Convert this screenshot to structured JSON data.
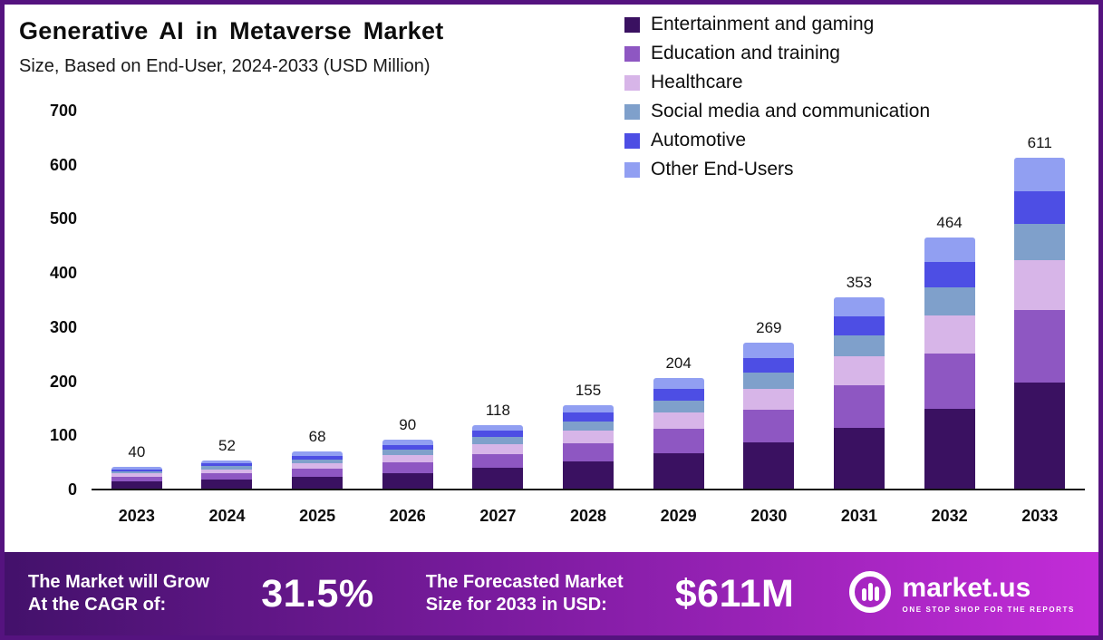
{
  "header": {
    "title": "Generative AI in Metaverse Market",
    "subtitle": "Size, Based on End-User, 2024-2033 (USD Million)"
  },
  "chart_data": {
    "type": "bar",
    "stacked": true,
    "title": "Generative AI in Metaverse Market Size, Based on End-User, 2024-2033 (USD Million)",
    "categories": [
      "2023",
      "2024",
      "2025",
      "2026",
      "2027",
      "2028",
      "2029",
      "2030",
      "2031",
      "2032",
      "2033"
    ],
    "totals": [
      40,
      52,
      68,
      90,
      118,
      155,
      204,
      269,
      353,
      464,
      611
    ],
    "series": [
      {
        "name": "Entertainment and gaming",
        "color": "#3a1161",
        "values": [
          13,
          17,
          22,
          29,
          38,
          50,
          65,
          86,
          113,
          148,
          196
        ]
      },
      {
        "name": "Education and training",
        "color": "#8e57c2",
        "values": [
          9,
          11,
          15,
          20,
          26,
          34,
          45,
          59,
          78,
          102,
          134
        ]
      },
      {
        "name": "Healthcare",
        "color": "#d7b5e8",
        "values": [
          6,
          8,
          10,
          13,
          18,
          23,
          31,
          40,
          53,
          70,
          92
        ]
      },
      {
        "name": "Social media and communication",
        "color": "#7fa0cb",
        "values": [
          4,
          6,
          7,
          10,
          13,
          17,
          22,
          30,
          39,
          51,
          67
        ]
      },
      {
        "name": "Automotive",
        "color": "#4d4ee4",
        "values": [
          4,
          5,
          7,
          9,
          12,
          16,
          21,
          27,
          35,
          47,
          61
        ]
      },
      {
        "name": "Other End-Users",
        "color": "#919ff2",
        "values": [
          4,
          5,
          7,
          9,
          11,
          15,
          20,
          27,
          35,
          46,
          61
        ]
      }
    ],
    "ylim": [
      0,
      700
    ],
    "yticks": [
      0,
      100,
      200,
      300,
      400,
      500,
      600,
      700
    ],
    "ylabel": "",
    "xlabel": "",
    "grid": false,
    "legend_position": "top-right"
  },
  "footer": {
    "cagr_label_line1": "The Market will Grow",
    "cagr_label_line2": "At the CAGR of:",
    "cagr_value": "31.5%",
    "forecast_label_line1": "The Forecasted Market",
    "forecast_label_line2": "Size for 2033 in USD:",
    "forecast_value": "$611M",
    "brand": "market.us",
    "brand_tagline": "ONE STOP SHOP FOR THE REPORTS"
  }
}
